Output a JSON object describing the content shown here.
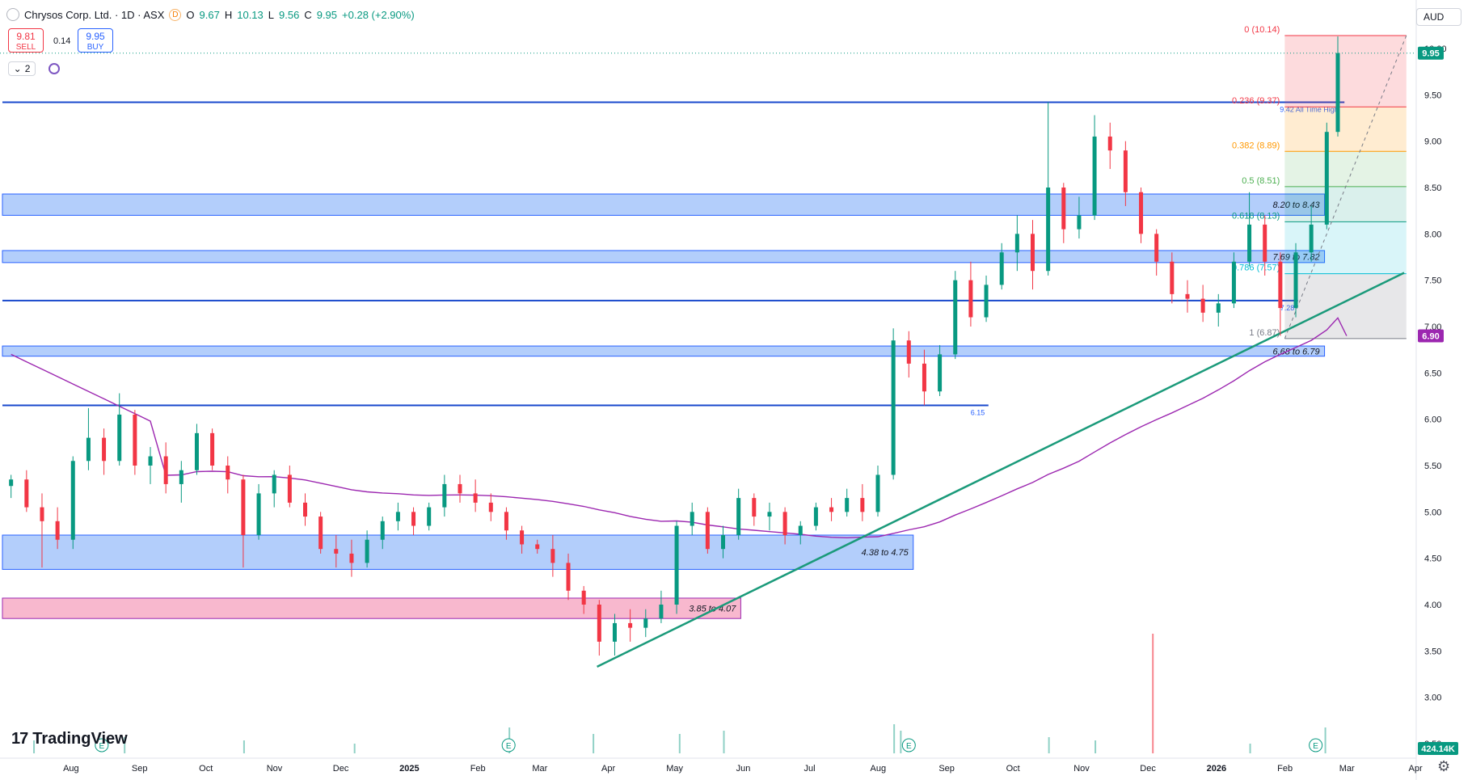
{
  "header": {
    "symbol": "Chrysos Corp. Ltd. · 1D · ASX",
    "badge": "D",
    "o_label": "O",
    "o": "9.67",
    "h_label": "H",
    "h": "10.13",
    "l_label": "L",
    "l": "9.56",
    "c_label": "C",
    "c": "9.95",
    "change": "+0.28 (+2.90%)"
  },
  "trade": {
    "sell_price": "9.81",
    "sell_label": "SELL",
    "spread": "0.14",
    "buy_price": "9.95",
    "buy_label": "BUY"
  },
  "indicators_count": "2",
  "currency": "AUD",
  "brand": "TradingView",
  "colors": {
    "up": "#089981",
    "down": "#f23645",
    "zone_blue": "#2962ff",
    "zone_red": "#f06292",
    "ma": "#9c27b0",
    "trend": "#1a9a7a",
    "level": "#1848cc"
  },
  "chart_data": {
    "type": "candlestick",
    "price_range": [
      2.5,
      10.3
    ],
    "y_ticks": [
      "2.50",
      "3.00",
      "3.50",
      "4.00",
      "4.50",
      "5.00",
      "5.50",
      "6.00",
      "6.50",
      "7.00",
      "7.50",
      "8.00",
      "8.50",
      "9.00",
      "9.50",
      "10.00"
    ],
    "x_ticks": [
      "Aug",
      "Sep",
      "Oct",
      "Nov",
      "Dec",
      "2025",
      "Feb",
      "Mar",
      "Apr",
      "May",
      "Jun",
      "Jul",
      "Aug",
      "Sep",
      "Oct",
      "Nov",
      "Dec",
      "2026",
      "Feb",
      "Mar",
      "Apr"
    ],
    "last_price": "9.95",
    "ma_last": "6.90",
    "volume_last": "424.14K",
    "zones": [
      {
        "low": 8.2,
        "high": 8.43,
        "label": "8.20 to 8.43",
        "color": "blue"
      },
      {
        "low": 7.69,
        "high": 7.82,
        "label": "7.69 to 7.82",
        "color": "blue"
      },
      {
        "low": 6.68,
        "high": 6.79,
        "label": "6.68 to 6.79",
        "color": "blue"
      },
      {
        "low": 4.38,
        "high": 4.75,
        "label": "4.38 to 4.75",
        "color": "blue"
      },
      {
        "low": 3.85,
        "high": 4.07,
        "label": "3.85 to 4.07",
        "color": "red"
      }
    ],
    "levels": [
      {
        "price": 9.42,
        "label": "9.42 All Time High"
      },
      {
        "price": 7.28,
        "label": "7.28"
      },
      {
        "price": 6.15,
        "label": "6.15"
      }
    ],
    "fibonacci": [
      {
        "label": "0 (10.14)",
        "price": 10.14
      },
      {
        "label": "0.236 (9.37)",
        "price": 9.37
      },
      {
        "label": "0.382 (8.89)",
        "price": 8.89
      },
      {
        "label": "0.5 (8.51)",
        "price": 8.51
      },
      {
        "label": "0.618 (8.13)",
        "price": 8.13
      },
      {
        "label": "0.786 (7.57)",
        "price": 7.57
      },
      {
        "label": "1 (6.87)",
        "price": 6.87
      }
    ],
    "trendline": {
      "from": {
        "date": "2025-04-01",
        "price": 3.33
      },
      "to": {
        "date": "2026-04-01",
        "price": 7.58
      }
    },
    "earnings_markers": [
      "2024-08-20",
      "2025-02-20",
      "2025-08-20",
      "2026-02-20"
    ],
    "candles": [
      [
        "2024-07-10",
        5.28,
        5.4,
        5.15,
        5.35
      ],
      [
        "2024-07-17",
        5.35,
        5.45,
        5.0,
        5.05
      ],
      [
        "2024-07-24",
        5.05,
        5.2,
        4.4,
        4.9
      ],
      [
        "2024-07-31",
        4.9,
        5.05,
        4.6,
        4.7
      ],
      [
        "2024-08-07",
        4.7,
        5.6,
        4.6,
        5.55
      ],
      [
        "2024-08-14",
        5.55,
        6.12,
        5.45,
        5.8
      ],
      [
        "2024-08-21",
        5.8,
        5.9,
        5.4,
        5.55
      ],
      [
        "2024-08-28",
        5.55,
        6.28,
        5.5,
        6.05
      ],
      [
        "2024-09-04",
        6.05,
        6.1,
        5.4,
        5.5
      ],
      [
        "2024-09-11",
        5.5,
        5.7,
        5.3,
        5.6
      ],
      [
        "2024-09-18",
        5.6,
        5.75,
        5.2,
        5.3
      ],
      [
        "2024-09-25",
        5.3,
        5.55,
        5.1,
        5.45
      ],
      [
        "2024-10-02",
        5.45,
        5.95,
        5.4,
        5.85
      ],
      [
        "2024-10-09",
        5.85,
        5.9,
        5.45,
        5.5
      ],
      [
        "2024-10-16",
        5.5,
        5.6,
        5.2,
        5.35
      ],
      [
        "2024-10-23",
        5.35,
        5.4,
        4.4,
        4.75
      ],
      [
        "2024-10-30",
        4.75,
        5.3,
        4.7,
        5.2
      ],
      [
        "2024-11-06",
        5.2,
        5.45,
        5.05,
        5.4
      ],
      [
        "2024-11-13",
        5.4,
        5.5,
        5.05,
        5.1
      ],
      [
        "2024-11-20",
        5.1,
        5.2,
        4.85,
        4.95
      ],
      [
        "2024-11-27",
        4.95,
        5.0,
        4.55,
        4.6
      ],
      [
        "2024-12-04",
        4.6,
        4.75,
        4.4,
        4.55
      ],
      [
        "2024-12-11",
        4.55,
        4.7,
        4.3,
        4.45
      ],
      [
        "2024-12-18",
        4.45,
        4.8,
        4.4,
        4.7
      ],
      [
        "2024-12-25",
        4.7,
        4.95,
        4.6,
        4.9
      ],
      [
        "2025-01-01",
        4.9,
        5.1,
        4.8,
        5.0
      ],
      [
        "2025-01-08",
        5.0,
        5.05,
        4.75,
        4.85
      ],
      [
        "2025-01-15",
        4.85,
        5.1,
        4.8,
        5.05
      ],
      [
        "2025-01-22",
        5.05,
        5.4,
        4.95,
        5.3
      ],
      [
        "2025-01-29",
        5.3,
        5.4,
        5.1,
        5.2
      ],
      [
        "2025-02-05",
        5.2,
        5.35,
        5.0,
        5.1
      ],
      [
        "2025-02-12",
        5.1,
        5.2,
        4.9,
        5.0
      ],
      [
        "2025-02-19",
        5.0,
        5.05,
        4.7,
        4.8
      ],
      [
        "2025-02-26",
        4.8,
        4.85,
        4.55,
        4.65
      ],
      [
        "2025-03-05",
        4.65,
        4.7,
        4.55,
        4.6
      ],
      [
        "2025-03-12",
        4.6,
        4.75,
        4.3,
        4.45
      ],
      [
        "2025-03-19",
        4.45,
        4.55,
        4.05,
        4.15
      ],
      [
        "2025-03-26",
        4.15,
        4.2,
        3.9,
        4.0
      ],
      [
        "2025-04-02",
        4.0,
        4.05,
        3.45,
        3.6
      ],
      [
        "2025-04-09",
        3.6,
        3.9,
        3.45,
        3.8
      ],
      [
        "2025-04-16",
        3.8,
        3.95,
        3.6,
        3.75
      ],
      [
        "2025-04-23",
        3.75,
        3.95,
        3.65,
        3.85
      ],
      [
        "2025-04-30",
        3.85,
        4.15,
        3.8,
        4.0
      ],
      [
        "2025-05-07",
        4.0,
        4.9,
        3.9,
        4.85
      ],
      [
        "2025-05-14",
        4.85,
        5.1,
        4.75,
        5.0
      ],
      [
        "2025-05-21",
        5.0,
        5.05,
        4.55,
        4.6
      ],
      [
        "2025-05-28",
        4.6,
        4.85,
        4.5,
        4.75
      ],
      [
        "2025-06-04",
        4.75,
        5.25,
        4.7,
        5.15
      ],
      [
        "2025-06-11",
        5.15,
        5.2,
        4.85,
        4.95
      ],
      [
        "2025-06-18",
        4.95,
        5.1,
        4.8,
        5.0
      ],
      [
        "2025-06-25",
        5.0,
        5.05,
        4.65,
        4.75
      ],
      [
        "2025-07-02",
        4.75,
        4.9,
        4.65,
        4.85
      ],
      [
        "2025-07-09",
        4.85,
        5.1,
        4.8,
        5.05
      ],
      [
        "2025-07-16",
        5.05,
        5.15,
        4.9,
        5.0
      ],
      [
        "2025-07-23",
        5.0,
        5.25,
        4.95,
        5.15
      ],
      [
        "2025-07-30",
        5.15,
        5.3,
        4.9,
        5.0
      ],
      [
        "2025-08-06",
        5.0,
        5.5,
        4.95,
        5.4
      ],
      [
        "2025-08-13",
        5.4,
        6.98,
        5.35,
        6.85
      ],
      [
        "2025-08-20",
        6.85,
        6.95,
        6.45,
        6.6
      ],
      [
        "2025-08-27",
        6.6,
        6.75,
        6.15,
        6.3
      ],
      [
        "2025-09-03",
        6.3,
        6.8,
        6.25,
        6.7
      ],
      [
        "2025-09-10",
        6.7,
        7.6,
        6.65,
        7.5
      ],
      [
        "2025-09-17",
        7.5,
        7.7,
        7.0,
        7.1
      ],
      [
        "2025-09-24",
        7.1,
        7.55,
        7.05,
        7.45
      ],
      [
        "2025-10-01",
        7.45,
        7.9,
        7.4,
        7.8
      ],
      [
        "2025-10-08",
        7.8,
        8.2,
        7.6,
        8.0
      ],
      [
        "2025-10-15",
        8.0,
        8.15,
        7.4,
        7.6
      ],
      [
        "2025-10-22",
        7.6,
        9.42,
        7.55,
        8.5
      ],
      [
        "2025-10-29",
        8.5,
        8.55,
        7.9,
        8.05
      ],
      [
        "2025-11-05",
        8.05,
        8.4,
        7.95,
        8.2
      ],
      [
        "2025-11-12",
        8.2,
        9.28,
        8.15,
        9.05
      ],
      [
        "2025-11-19",
        9.05,
        9.2,
        8.7,
        8.9
      ],
      [
        "2025-11-26",
        8.9,
        9.0,
        8.3,
        8.45
      ],
      [
        "2025-12-03",
        8.45,
        8.5,
        7.9,
        8.0
      ],
      [
        "2025-12-10",
        8.0,
        8.05,
        7.55,
        7.7
      ],
      [
        "2025-12-17",
        7.7,
        7.8,
        7.25,
        7.35
      ],
      [
        "2025-12-24",
        7.35,
        7.5,
        7.15,
        7.3
      ],
      [
        "2025-12-31",
        7.3,
        7.45,
        7.05,
        7.15
      ],
      [
        "2026-01-07",
        7.15,
        7.35,
        7.0,
        7.25
      ],
      [
        "2026-01-14",
        7.25,
        7.8,
        7.2,
        7.7
      ],
      [
        "2026-01-21",
        7.7,
        8.45,
        7.65,
        8.1
      ],
      [
        "2026-01-28",
        8.1,
        8.2,
        7.55,
        7.7
      ],
      [
        "2026-02-04",
        7.7,
        7.8,
        6.9,
        7.2
      ],
      [
        "2026-02-11",
        7.2,
        7.9,
        7.1,
        7.8
      ],
      [
        "2026-02-18",
        7.8,
        8.3,
        7.7,
        8.1
      ],
      [
        "2026-02-25",
        8.1,
        9.2,
        8.05,
        9.1
      ],
      [
        "2026-03-02",
        9.1,
        10.13,
        9.05,
        9.95
      ]
    ],
    "volume": [
      {
        "date": "2025-02-20",
        "value": 0.8
      },
      {
        "date": "2025-05-08",
        "value": 0.6
      },
      {
        "date": "2025-05-28",
        "value": 0.7
      },
      {
        "date": "2025-08-13",
        "value": 0.9
      },
      {
        "date": "2025-08-16",
        "value": 0.7
      },
      {
        "date": "2025-12-08",
        "value": 3.7
      },
      {
        "date": "2026-02-24",
        "value": 0.8
      },
      {
        "date": "2024-07-20",
        "value": 0.4
      },
      {
        "date": "2024-08-30",
        "value": 0.5
      },
      {
        "date": "2024-10-23",
        "value": 0.4
      },
      {
        "date": "2024-12-12",
        "value": 0.3
      },
      {
        "date": "2025-03-30",
        "value": 0.6
      },
      {
        "date": "2025-10-22",
        "value": 0.5
      },
      {
        "date": "2025-11-12",
        "value": 0.4
      },
      {
        "date": "2026-01-21",
        "value": 0.3
      }
    ]
  }
}
